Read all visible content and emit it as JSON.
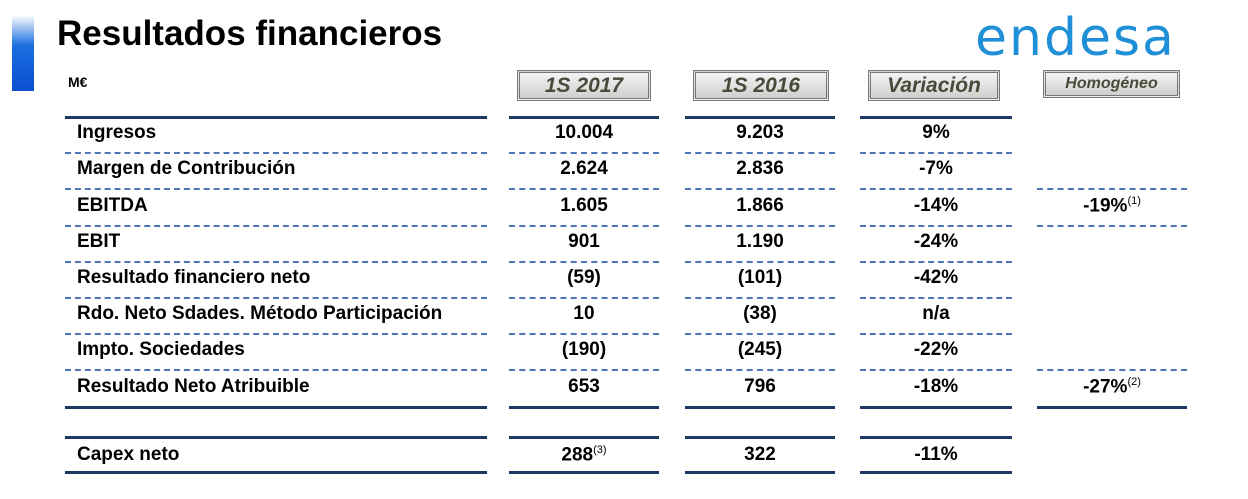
{
  "header": {
    "title": "Resultados financieros",
    "unit": "M€",
    "logo": "endesa"
  },
  "table": {
    "columns": [
      "1S 2017",
      "1S 2016",
      "Variación",
      "Homogéneo"
    ],
    "rows": [
      {
        "label": "Ingresos",
        "cells": [
          "10.004",
          "9.203",
          "9%"
        ]
      },
      {
        "label": "Margen de Contribución",
        "cells": [
          "2.624",
          "2.836",
          "-7%"
        ]
      },
      {
        "label": "EBITDA",
        "cells": [
          "1.605",
          "1.866",
          "-14%"
        ],
        "homogeneous": "-19%",
        "note": "(1)"
      },
      {
        "label": "EBIT",
        "cells": [
          "901",
          "1.190",
          "-24%"
        ]
      },
      {
        "label": "Resultado financiero neto",
        "cells": [
          "(59)",
          "(101)",
          "-42%"
        ]
      },
      {
        "label": "Rdo. Neto Sdades. Método Participación",
        "cells": [
          "10",
          "(38)",
          "n/a"
        ]
      },
      {
        "label": "Impto. Sociedades",
        "cells": [
          "(190)",
          "(245)",
          "-22%"
        ]
      },
      {
        "label": "Resultado Neto Atribuible",
        "cells": [
          "653",
          "796",
          "-18%"
        ],
        "homogeneous": "-27%",
        "note": "(2)"
      }
    ],
    "capex": {
      "label": "Capex neto",
      "cells": [
        "288",
        "322",
        "-11%"
      ],
      "note": "(3)"
    }
  }
}
